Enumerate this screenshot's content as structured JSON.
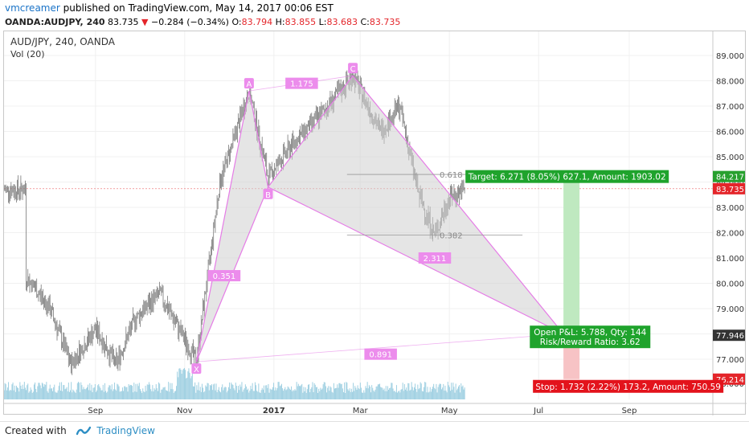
{
  "header": {
    "author": "vmcreamer",
    "published_text": "published on TradingView.com, May 14, 2017 00:06 EST",
    "symbol": "OANDA:AUDJPY, 240",
    "last": "83.735",
    "change": "−0.284 (−0.34%)",
    "open_label": "O:",
    "open": "83.794",
    "high_label": "H:",
    "high": "83.855",
    "low_label": "L:",
    "low": "83.683",
    "close_label": "C:",
    "close": "83.735",
    "colors": {
      "down": "#e4252a",
      "author": "#1a73c7"
    }
  },
  "chart_data": {
    "type": "candlestick",
    "legend": {
      "instrument": "AUD/JPY, 240, OANDA",
      "volume": "Vol (20)"
    },
    "x_ticks": [
      "Sep",
      "Nov",
      "2017",
      "Mar",
      "May",
      "Jul",
      "Sep"
    ],
    "y_ticks": [
      "77.000",
      "78.000",
      "79.000",
      "80.000",
      "81.000",
      "82.000",
      "83.000",
      "84.000",
      "85.000",
      "86.000",
      "87.000",
      "88.000",
      "89.000"
    ],
    "partial_tick": "76.000",
    "ylim": [
      75.6,
      89.6
    ],
    "approx_path": [
      {
        "date": "2016-07-15",
        "price": 80.3
      },
      {
        "date": "2016-08-01",
        "price": 79.0
      },
      {
        "date": "2016-08-15",
        "price": 76.8
      },
      {
        "date": "2016-09-01",
        "price": 78.2
      },
      {
        "date": "2016-09-15",
        "price": 76.8
      },
      {
        "date": "2016-09-28",
        "price": 78.6
      },
      {
        "date": "2016-10-15",
        "price": 79.6
      },
      {
        "date": "2016-11-09",
        "price": 76.9
      },
      {
        "date": "2016-11-25",
        "price": 84.0
      },
      {
        "date": "2016-12-15",
        "price": 87.6
      },
      {
        "date": "2016-12-28",
        "price": 84.2
      },
      {
        "date": "2017-01-15",
        "price": 85.6
      },
      {
        "date": "2017-02-01",
        "price": 86.6
      },
      {
        "date": "2017-02-24",
        "price": 88.2
      },
      {
        "date": "2017-03-15",
        "price": 86.0
      },
      {
        "date": "2017-03-28",
        "price": 87.0
      },
      {
        "date": "2017-04-10",
        "price": 83.5
      },
      {
        "date": "2017-04-21",
        "price": 81.9
      },
      {
        "date": "2017-05-01",
        "price": 83.4
      },
      {
        "date": "2017-05-12",
        "price": 83.7
      }
    ],
    "pattern": {
      "points": [
        {
          "label": "X",
          "date": "2016-11-09",
          "price": 76.9
        },
        {
          "label": "A",
          "date": "2016-12-15",
          "price": 87.6
        },
        {
          "label": "B",
          "date": "2016-12-28",
          "price": 83.8
        },
        {
          "label": "C",
          "date": "2017-02-24",
          "price": 88.2
        },
        {
          "label": "D",
          "date": "2017-07-18",
          "price": 78.0
        }
      ],
      "ratios": [
        {
          "label": "1.175",
          "date": "2017-01-20",
          "price": 87.9
        },
        {
          "label": "0.351",
          "date": "2016-11-28",
          "price": 80.3
        },
        {
          "label": "2.311",
          "date": "2017-04-21",
          "price": 81.0
        },
        {
          "label": "0.891",
          "date": "2017-03-15",
          "price": 77.2
        }
      ]
    },
    "fib_levels": [
      {
        "label": "0.618",
        "price": 84.3,
        "from": "2017-02-20",
        "to": "2017-05-15"
      },
      {
        "label": "0.382",
        "price": 81.9,
        "from": "2017-02-20",
        "to": "2017-06-20"
      }
    ],
    "position": {
      "target_label": "Target: 6.271 (8.05%) 627.1, Amount: 1903.02",
      "pnl_label": "Open P&L: 5.788, Qty: 144",
      "rr_label": "Risk/Reward Ratio: 3.62",
      "stop_label": "Stop: 1.732 (2.22%) 173.2, Amount: 750.59",
      "target_price": 84.217,
      "entry_price": 77.946,
      "stop_price": 76.214
    },
    "price_tags": [
      {
        "label": "84.217",
        "price": 84.217,
        "color": "#27a02e"
      },
      {
        "label": "83.735",
        "price": 83.735,
        "color": "#e4252a"
      },
      {
        "label": "77.946",
        "price": 77.946,
        "color": "#333333"
      },
      {
        "label": "76.214",
        "price": 76.214,
        "color": "#e4252a"
      }
    ],
    "colors": {
      "pattern_line": "#e57ce6",
      "pattern_fill": "#cfcfcf",
      "candles": "#777777",
      "volume": "#9fd0e2",
      "profit_zone": "#bfe9c0",
      "loss_zone": "#f7c3c5",
      "profit_label": "#1fa32c",
      "loss_label": "#e3131c"
    }
  },
  "footer": {
    "created_with": "Created with",
    "brand": "TradingView"
  }
}
